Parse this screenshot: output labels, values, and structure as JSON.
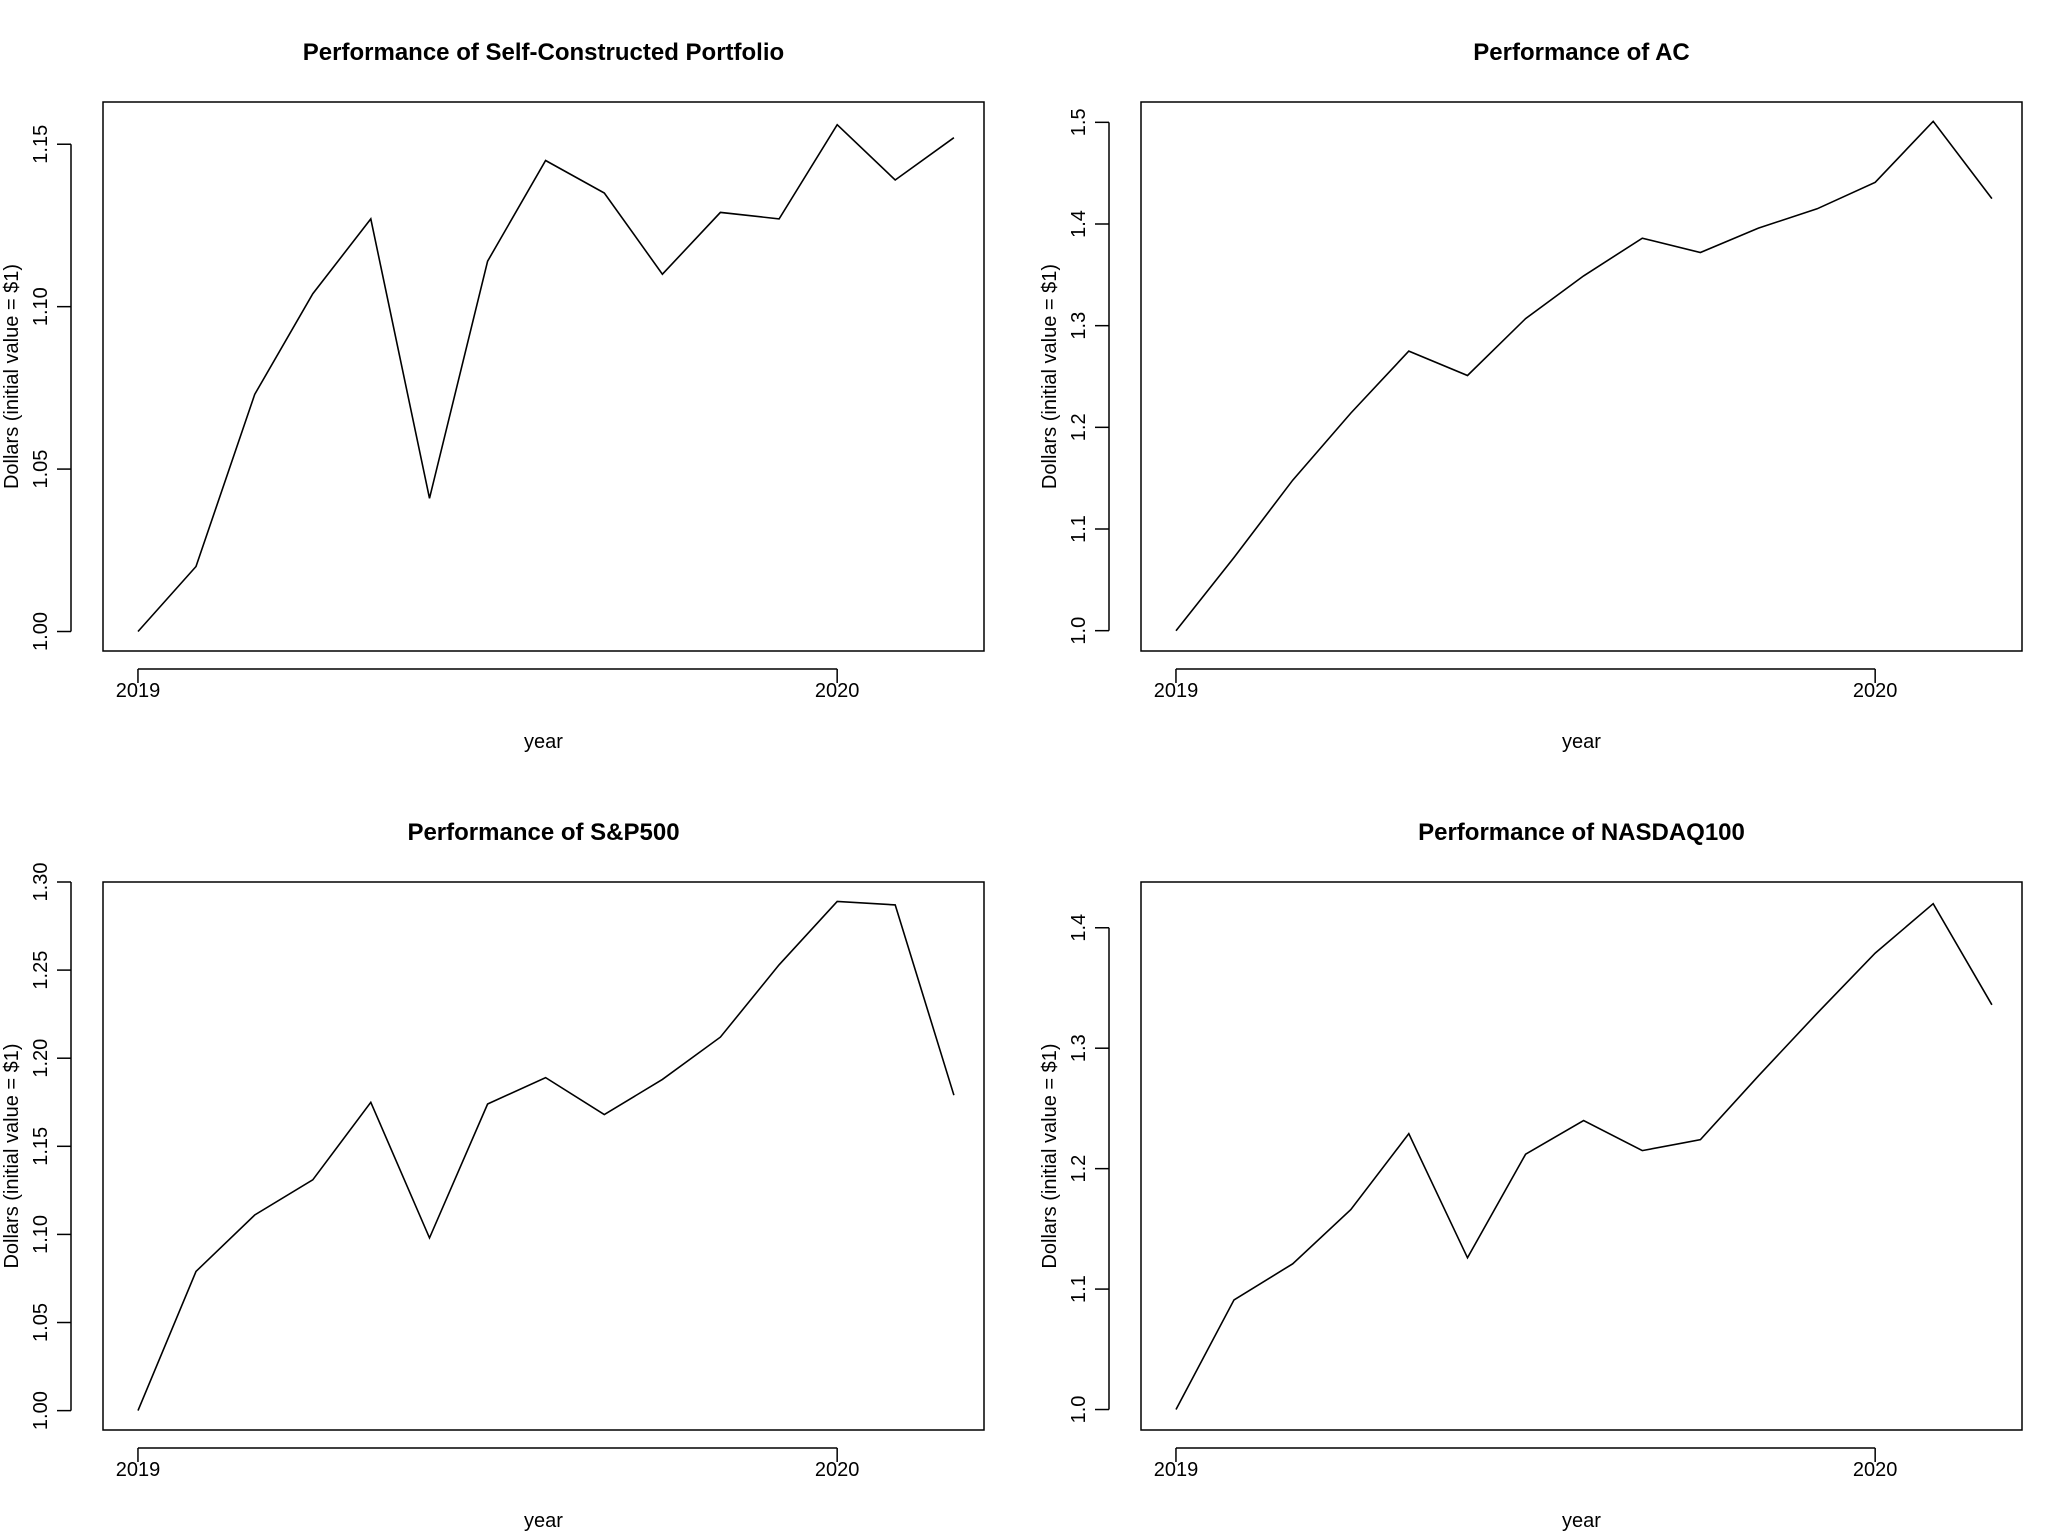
{
  "chart_data": [
    {
      "type": "line",
      "title": "Performance of Self-Constructed Portfolio",
      "xlabel": "year",
      "ylabel": "Dollars (initial value = $1)",
      "xlim": [
        2018.95,
        2020.21
      ],
      "ylim": [
        0.994,
        1.163
      ],
      "x_ticks": [
        2019,
        2020
      ],
      "y_ticks": [
        1.0,
        1.05,
        1.1,
        1.15
      ],
      "y_tick_labels": [
        "1.00",
        "1.05",
        "1.10",
        "1.15"
      ],
      "grid": false,
      "x": [
        2019.0,
        2019.083,
        2019.167,
        2019.25,
        2019.333,
        2019.417,
        2019.5,
        2019.583,
        2019.667,
        2019.75,
        2019.833,
        2019.917,
        2020.0,
        2020.083,
        2020.167
      ],
      "values": [
        1.0,
        1.02,
        1.073,
        1.104,
        1.127,
        1.041,
        1.114,
        1.145,
        1.135,
        1.11,
        1.129,
        1.127,
        1.156,
        1.139,
        1.152
      ]
    },
    {
      "type": "line",
      "title": "Performance of AC",
      "xlabel": "year",
      "ylabel": "Dollars (initial value = $1)",
      "xlim": [
        2018.95,
        2020.21
      ],
      "ylim": [
        0.98,
        1.52
      ],
      "x_ticks": [
        2019,
        2020
      ],
      "y_ticks": [
        1.0,
        1.1,
        1.2,
        1.3,
        1.4,
        1.5
      ],
      "y_tick_labels": [
        "1.0",
        "1.1",
        "1.2",
        "1.3",
        "1.4",
        "1.5"
      ],
      "grid": false,
      "x": [
        2019.0,
        2019.083,
        2019.167,
        2019.25,
        2019.333,
        2019.417,
        2019.5,
        2019.583,
        2019.667,
        2019.75,
        2019.833,
        2019.917,
        2020.0,
        2020.083,
        2020.167
      ],
      "values": [
        1.0,
        1.072,
        1.148,
        1.214,
        1.275,
        1.251,
        1.307,
        1.349,
        1.386,
        1.372,
        1.396,
        1.415,
        1.441,
        1.501,
        1.425
      ]
    },
    {
      "type": "line",
      "title": "Performance of S&P500",
      "xlabel": "year",
      "ylabel": "Dollars (initial value = $1)",
      "xlim": [
        2018.95,
        2020.21
      ],
      "ylim": [
        0.989,
        1.3
      ],
      "x_ticks": [
        2019,
        2020
      ],
      "y_ticks": [
        1.0,
        1.05,
        1.1,
        1.15,
        1.2,
        1.25,
        1.3
      ],
      "y_tick_labels": [
        "1.00",
        "1.05",
        "1.10",
        "1.15",
        "1.20",
        "1.25",
        "1.30"
      ],
      "grid": false,
      "x": [
        2019.0,
        2019.083,
        2019.167,
        2019.25,
        2019.333,
        2019.417,
        2019.5,
        2019.583,
        2019.667,
        2019.75,
        2019.833,
        2019.917,
        2020.0,
        2020.083,
        2020.167
      ],
      "values": [
        1.0,
        1.079,
        1.111,
        1.131,
        1.175,
        1.098,
        1.174,
        1.189,
        1.168,
        1.188,
        1.212,
        1.253,
        1.289,
        1.287,
        1.179
      ]
    },
    {
      "type": "line",
      "title": "Performance of NASDAQ100",
      "xlabel": "year",
      "ylabel": "Dollars (initial value = $1)",
      "xlim": [
        2018.95,
        2020.21
      ],
      "ylim": [
        0.983,
        1.438
      ],
      "x_ticks": [
        2019,
        2020
      ],
      "y_ticks": [
        1.0,
        1.1,
        1.2,
        1.3,
        1.4
      ],
      "y_tick_labels": [
        "1.0",
        "1.1",
        "1.2",
        "1.3",
        "1.4"
      ],
      "grid": false,
      "x": [
        2019.0,
        2019.083,
        2019.167,
        2019.25,
        2019.333,
        2019.417,
        2019.5,
        2019.583,
        2019.667,
        2019.75,
        2019.833,
        2019.917,
        2020.0,
        2020.083,
        2020.167
      ],
      "values": [
        1.0,
        1.091,
        1.121,
        1.166,
        1.229,
        1.126,
        1.212,
        1.24,
        1.215,
        1.224,
        1.277,
        1.329,
        1.379,
        1.42,
        1.336
      ]
    }
  ]
}
